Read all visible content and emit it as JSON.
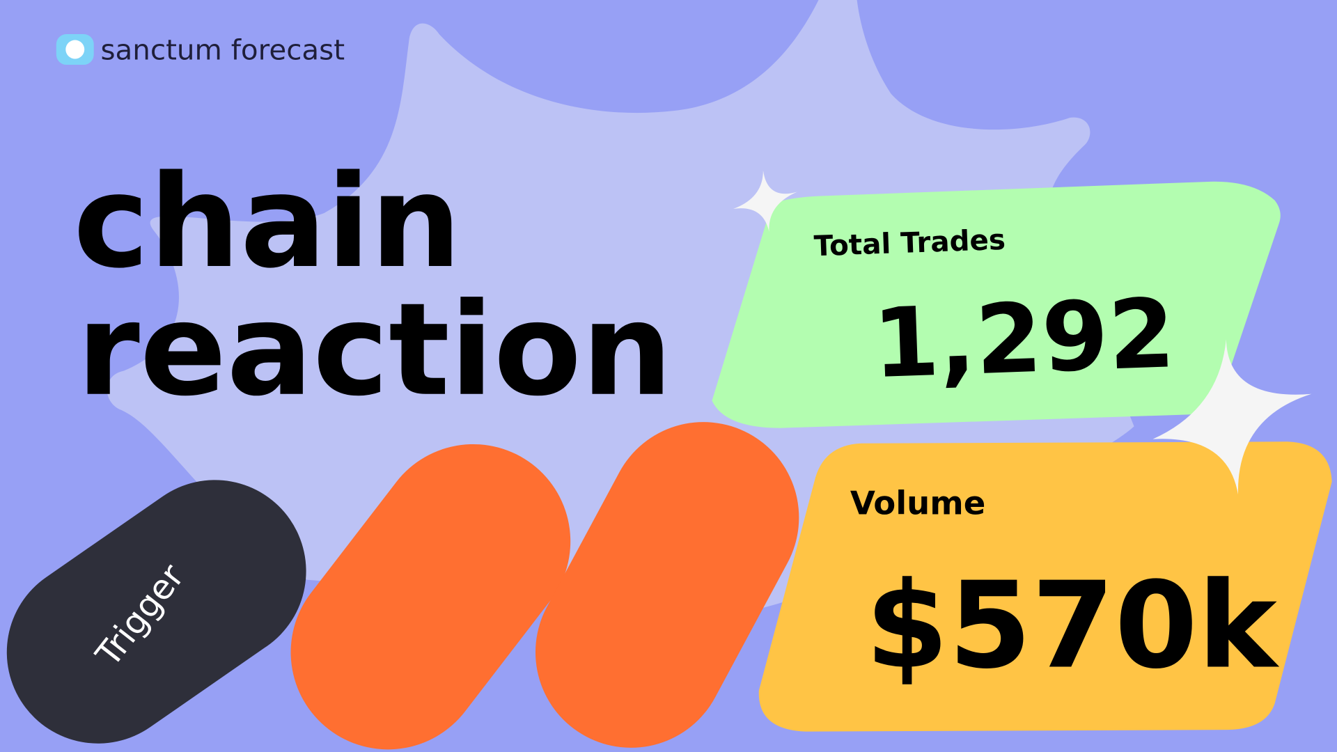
{
  "brand": "sanctum forecast",
  "headline": [
    "chain",
    "reaction"
  ],
  "trigger": "Trigger",
  "cards": [
    {
      "label": "Total Trades",
      "value": "1,292"
    },
    {
      "label": "Volume",
      "value": "$570k"
    }
  ]
}
